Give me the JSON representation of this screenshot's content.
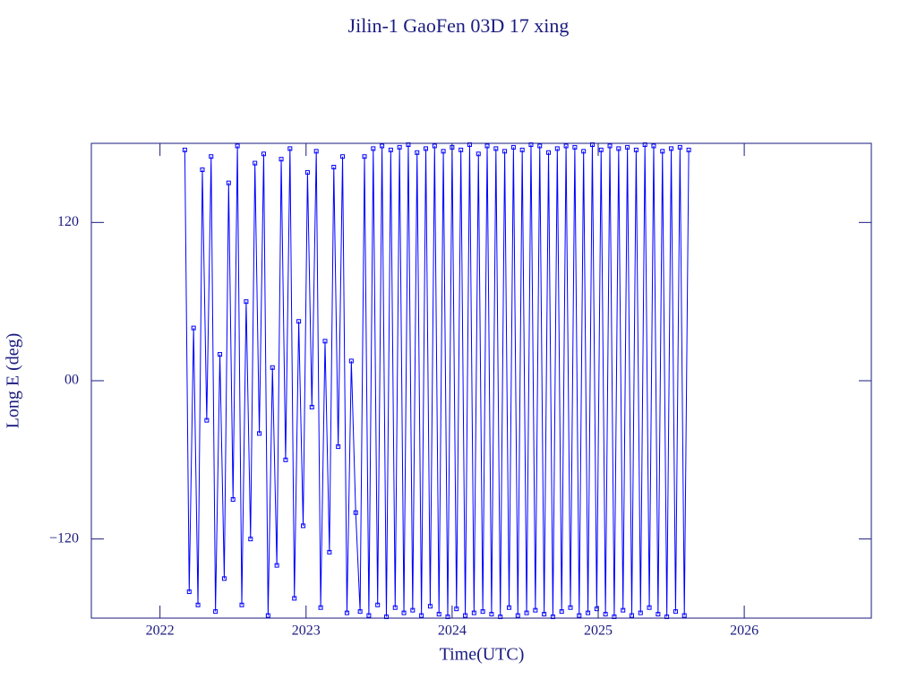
{
  "chart_data": {
    "type": "line",
    "title": "Jilin-1 GaoFen 03D 17 xing",
    "x_label": "Time(UTC)",
    "y_label": "Long E (deg)",
    "xlim": [
      2021.53,
      2026.87
    ],
    "ylim": [
      -180,
      180
    ],
    "xticks": [
      2022,
      2023,
      2024,
      2025,
      2026
    ],
    "yticks": [
      {
        "value": -120,
        "label": "−120"
      },
      {
        "value": 0,
        "label": "00"
      },
      120
    ],
    "x": [
      2022.17,
      2022.2,
      2022.23,
      2022.26,
      2022.29,
      2022.32,
      2022.35,
      2022.38,
      2022.41,
      2022.44,
      2022.47,
      2022.5,
      2022.53,
      2022.56,
      2022.59,
      2022.62,
      2022.65,
      2022.68,
      2022.71,
      2022.74,
      2022.77,
      2022.8,
      2022.83,
      2022.86,
      2022.89,
      2022.92,
      2022.95,
      2022.98,
      2023.01,
      2023.04,
      2023.07,
      2023.1,
      2023.13,
      2023.16,
      2023.19,
      2023.22,
      2023.25,
      2023.28,
      2023.31,
      2023.34,
      2023.37,
      2023.4,
      2023.43,
      2023.46,
      2023.49,
      2023.52,
      2023.55,
      2023.58,
      2023.61,
      2023.64,
      2023.67,
      2023.7,
      2023.73,
      2023.76,
      2023.79,
      2023.82,
      2023.85,
      2023.88,
      2023.91,
      2023.94,
      2023.97,
      2024.0,
      2024.03,
      2024.06,
      2024.09,
      2024.12,
      2024.15,
      2024.18,
      2024.21,
      2024.24,
      2024.27,
      2024.3,
      2024.33,
      2024.36,
      2024.39,
      2024.42,
      2024.45,
      2024.48,
      2024.51,
      2024.54,
      2024.57,
      2024.6,
      2024.63,
      2024.66,
      2024.69,
      2024.72,
      2024.75,
      2024.78,
      2024.81,
      2024.84,
      2024.87,
      2024.9,
      2024.93,
      2024.96,
      2024.99,
      2025.02,
      2025.05,
      2025.08,
      2025.11,
      2025.14,
      2025.17,
      2025.2,
      2025.23,
      2025.26,
      2025.29,
      2025.32,
      2025.35,
      2025.38,
      2025.41,
      2025.44,
      2025.47,
      2025.5,
      2025.53,
      2025.56,
      2025.59,
      2025.62
    ],
    "series": [
      {
        "color": "#0000ff",
        "values": [
          175,
          -160,
          40,
          -170,
          160,
          -30,
          170,
          -175,
          20,
          -150,
          150,
          -90,
          178,
          -170,
          60,
          -120,
          165,
          -40,
          172,
          -178,
          10,
          -140,
          168,
          -60,
          176,
          -165,
          45,
          -110,
          158,
          -20,
          174,
          -172,
          30,
          -130,
          162,
          -50,
          170,
          -176,
          15,
          -100,
          -175,
          170,
          -178,
          176,
          -170,
          178,
          -179,
          175,
          -172,
          177,
          -176,
          179,
          -174,
          173,
          -178,
          176,
          -171,
          178,
          -177,
          174,
          -179,
          177,
          -173,
          175,
          -178,
          179,
          -176,
          172,
          -175,
          178,
          -177,
          176,
          -179,
          174,
          -172,
          177,
          -178,
          175,
          -176,
          179,
          -174,
          178,
          -177,
          173,
          -179,
          176,
          -175,
          178,
          -172,
          177,
          -178,
          174,
          -176,
          179,
          -173,
          175,
          -177,
          178,
          -179,
          176,
          -174,
          177,
          -178,
          175,
          -176,
          179,
          -172,
          178,
          -177,
          174,
          -179,
          176,
          -175,
          177,
          -178,
          175
        ]
      }
    ]
  }
}
